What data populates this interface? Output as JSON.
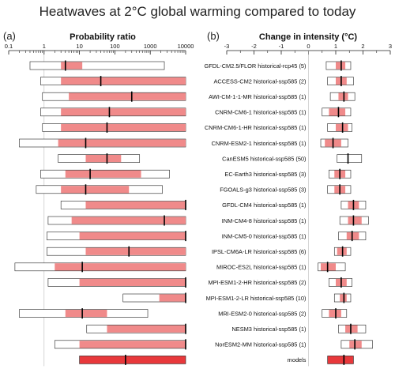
{
  "title": "Heatwaves at 2°C global warming compared to today",
  "colors": {
    "shade": "#f08a8a",
    "shade_combined": "#e8383b",
    "outline": "#222222"
  },
  "chart_data": [
    {
      "type": "bar",
      "panel": "(a)",
      "title": "Probability ratio",
      "x_scale": "log",
      "xlim": [
        0.1,
        10000
      ],
      "xticks": [
        "0.1",
        "1",
        "10",
        "100",
        "1000",
        "10000"
      ],
      "reference_line_x": 1,
      "rows": [
        {
          "range": [
            0.4,
            2500
          ],
          "shade": [
            3,
            12
          ],
          "central": 4
        },
        {
          "range": [
            0.8,
            10000
          ],
          "shade": [
            3,
            10000
          ],
          "central": 40
        },
        {
          "range": [
            0.9,
            10000
          ],
          "shade": [
            5,
            10000
          ],
          "central": 300
        },
        {
          "range": [
            0.8,
            10000
          ],
          "shade": [
            3,
            10000
          ],
          "central": 70
        },
        {
          "range": [
            0.9,
            10000
          ],
          "shade": [
            3,
            10000
          ],
          "central": 60
        },
        {
          "range": [
            0.2,
            10000
          ],
          "shade": [
            2.5,
            10000
          ],
          "central": 15
        },
        {
          "range": [
            2.5,
            500
          ],
          "shade": [
            15,
            150
          ],
          "central": 60
        },
        {
          "range": [
            0.8,
            3500
          ],
          "shade": [
            4,
            550
          ],
          "central": 20
        },
        {
          "range": [
            0.6,
            2200
          ],
          "shade": [
            3,
            250
          ],
          "central": 15
        },
        {
          "range": [
            3,
            10000
          ],
          "shade": [
            15,
            10000
          ],
          "central": 10000
        },
        {
          "range": [
            1.3,
            10000
          ],
          "shade": [
            6,
            10000
          ],
          "central": 2500
        },
        {
          "range": [
            1.2,
            10000
          ],
          "shade": [
            10,
            10000
          ],
          "central": 10000
        },
        {
          "range": [
            1.2,
            10000
          ],
          "shade": [
            15,
            10000
          ],
          "central": 250
        },
        {
          "range": [
            0.15,
            10000
          ],
          "shade": [
            2,
            10000
          ],
          "central": 12
        },
        {
          "range": [
            1.3,
            10000
          ],
          "shade": [
            10,
            10000
          ],
          "central": 10000
        },
        {
          "range": [
            170,
            10000
          ],
          "shade": [
            1800,
            10000
          ],
          "central": 10000
        },
        {
          "range": [
            0.2,
            850
          ],
          "shade": [
            4,
            60
          ],
          "central": 12
        },
        {
          "range": [
            16,
            10000
          ],
          "shade": [
            60,
            10000
          ],
          "central": 10000
        },
        {
          "range": [
            2,
            10000
          ],
          "shade": [
            10,
            10000
          ],
          "central": 10000
        },
        {
          "range": [
            10,
            10000
          ],
          "shade": [
            10,
            10000
          ],
          "central": 200,
          "combined": true
        }
      ]
    },
    {
      "type": "bar",
      "panel": "(b)",
      "title": "Change in intensity (°C)",
      "xlim": [
        -3,
        3
      ],
      "xticks": [
        "-3",
        "-2",
        "-1",
        "0",
        "1",
        "2",
        "3"
      ],
      "rows": [
        {
          "model": "GFDL-CM2.5/FLOR historical-rcp45 (5)",
          "range": [
            0.65,
            1.55
          ],
          "shade": [
            1.0,
            1.35
          ],
          "central": 1.2
        },
        {
          "model": "ACCESS-CM2 historical-ssp585 (2)",
          "range": [
            0.7,
            1.65
          ],
          "shade": [
            1.0,
            1.4
          ],
          "central": 1.2
        },
        {
          "model": "AWI-CM-1-1-MR historical-ssp585 (1)",
          "range": [
            0.8,
            1.7
          ],
          "shade": [
            1.1,
            1.45
          ],
          "central": 1.3
        },
        {
          "model": "CNRM-CM6-1 historical-ssp585 (1)",
          "range": [
            0.5,
            1.55
          ],
          "shade": [
            0.75,
            1.35
          ],
          "central": 1.1
        },
        {
          "model": "CNRM-CM6-1-HR historical-ssp585 (1)",
          "range": [
            0.7,
            1.6
          ],
          "shade": [
            1.0,
            1.45
          ],
          "central": 1.25
        },
        {
          "model": "CNRM-ESM2-1 historical-ssp585 (1)",
          "range": [
            0.45,
            1.45
          ],
          "shade": [
            0.6,
            1.2
          ],
          "central": 0.9
        },
        {
          "model": "CanESM5 historical-ssp585 (50)",
          "range": [
            1.05,
            1.95
          ],
          "shade": null,
          "central": 1.45
        },
        {
          "model": "EC-Earth3 historical-ssp585 (3)",
          "range": [
            0.75,
            1.55
          ],
          "shade": [
            0.95,
            1.35
          ],
          "central": 1.15
        },
        {
          "model": "FGOALS-g3 historical-ssp585 (3)",
          "range": [
            0.7,
            1.55
          ],
          "shade": [
            0.95,
            1.35
          ],
          "central": 1.15
        },
        {
          "model": "GFDL-CM4 historical-ssp585 (1)",
          "range": [
            1.2,
            2.1
          ],
          "shade": [
            1.45,
            1.85
          ],
          "central": 1.65
        },
        {
          "model": "INM-CM4-8 historical-ssp585 (1)",
          "range": [
            1.15,
            2.2
          ],
          "shade": [
            1.45,
            1.95
          ],
          "central": 1.65
        },
        {
          "model": "INM-CM5-0 historical-ssp585 (1)",
          "range": [
            1.1,
            2.1
          ],
          "shade": [
            1.4,
            1.85
          ],
          "central": 1.6
        },
        {
          "model": "IPSL-CM6A-LR historical-ssp585 (6)",
          "range": [
            0.95,
            1.55
          ],
          "shade": [
            1.05,
            1.4
          ],
          "central": 1.25
        },
        {
          "model": "MIROC-ES2L historical-ssp585 (1)",
          "range": [
            0.35,
            1.35
          ],
          "shade": [
            0.45,
            1.0
          ],
          "central": 0.7
        },
        {
          "model": "MPI-ESM1-2-HR historical-ssp585 (2)",
          "range": [
            0.75,
            1.6
          ],
          "shade": [
            1.0,
            1.4
          ],
          "central": 1.2
        },
        {
          "model": "MPI-ESM1-2-LR historical-ssp585 (10)",
          "range": [
            0.95,
            1.55
          ],
          "shade": [
            1.15,
            1.4
          ],
          "central": 1.3
        },
        {
          "model": "MRI-ESM2-0 historical-ssp585 (2)",
          "range": [
            0.5,
            1.4
          ],
          "shade": [
            0.75,
            1.2
          ],
          "central": 1.0
        },
        {
          "model": "NESM3 historical-ssp585 (1)",
          "range": [
            1.1,
            2.1
          ],
          "shade": [
            1.35,
            1.8
          ],
          "central": 1.55
        },
        {
          "model": "NorESM2-MM historical-ssp585 (1)",
          "range": [
            1.2,
            2.35
          ],
          "shade": [
            1.5,
            1.95
          ],
          "central": 1.7
        },
        {
          "model": "models",
          "range": [
            0.7,
            1.65
          ],
          "shade": [
            0.7,
            1.65
          ],
          "central": 1.3,
          "combined": true
        }
      ]
    }
  ]
}
